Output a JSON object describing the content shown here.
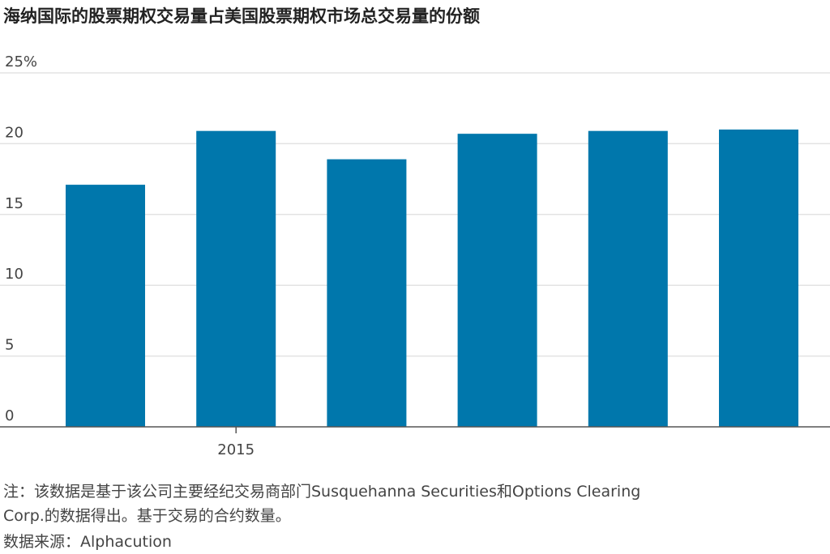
{
  "chart_data": {
    "type": "bar",
    "title": "海纳国际的股票期权交易量占美国股票期权市场总交易量的份额",
    "xlabel": "",
    "ylabel": "",
    "ylim": [
      0,
      25
    ],
    "yticks": [
      0,
      5,
      10,
      15,
      20,
      25
    ],
    "ytick_labels": [
      "0",
      "5",
      "10",
      "15",
      "20",
      "25%"
    ],
    "categories": [
      "",
      "2015",
      "",
      "",
      "",
      ""
    ],
    "values": [
      17.1,
      20.9,
      18.9,
      20.7,
      20.9,
      21.0
    ],
    "grid": true,
    "bar_color": "#0077ac",
    "grid_color": "#e3e3e3",
    "axis_color": "#555555"
  },
  "notes": {
    "line1": "注：该数据是基于该公司主要经纪交易商部门Susquehanna Securities和Options Clearing",
    "line2": "Corp.的数据得出。基于交易的合约数量。",
    "source": "数据来源：Alphacution"
  }
}
